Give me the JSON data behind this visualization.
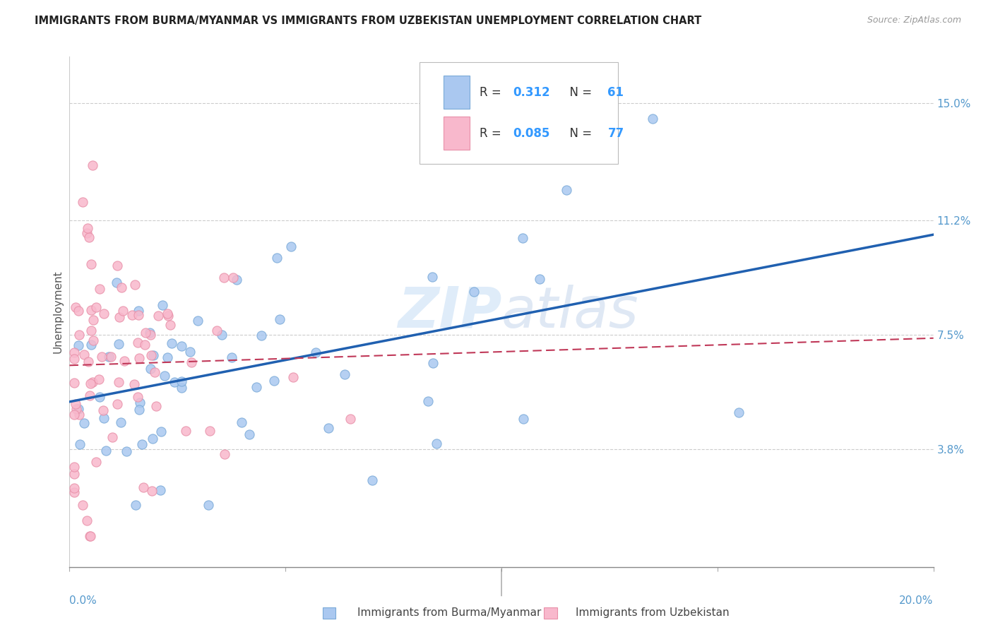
{
  "title": "IMMIGRANTS FROM BURMA/MYANMAR VS IMMIGRANTS FROM UZBEKISTAN UNEMPLOYMENT CORRELATION CHART",
  "source": "Source: ZipAtlas.com",
  "ylabel": "Unemployment",
  "x_min": 0.0,
  "x_max": 0.2,
  "y_min": 0.0,
  "y_max": 0.165,
  "y_tick_labels_right": [
    "3.8%",
    "7.5%",
    "11.2%",
    "15.0%"
  ],
  "y_tick_values_right": [
    0.038,
    0.075,
    0.112,
    0.15
  ],
  "watermark_zip": "ZIP",
  "watermark_atlas": "atlas",
  "series1_color": "#aac8f0",
  "series1_edge": "#7aaad8",
  "series2_color": "#f8b8cc",
  "series2_edge": "#e890a8",
  "trend1_color": "#2060b0",
  "trend2_color": "#c03858",
  "legend_R1": "0.312",
  "legend_N1": "61",
  "legend_R2": "0.085",
  "legend_N2": "77",
  "label1": "Immigrants from Burma/Myanmar",
  "label2": "Immigrants from Uzbekistan",
  "tick_color": "#5599cc",
  "grid_color": "#cccccc"
}
